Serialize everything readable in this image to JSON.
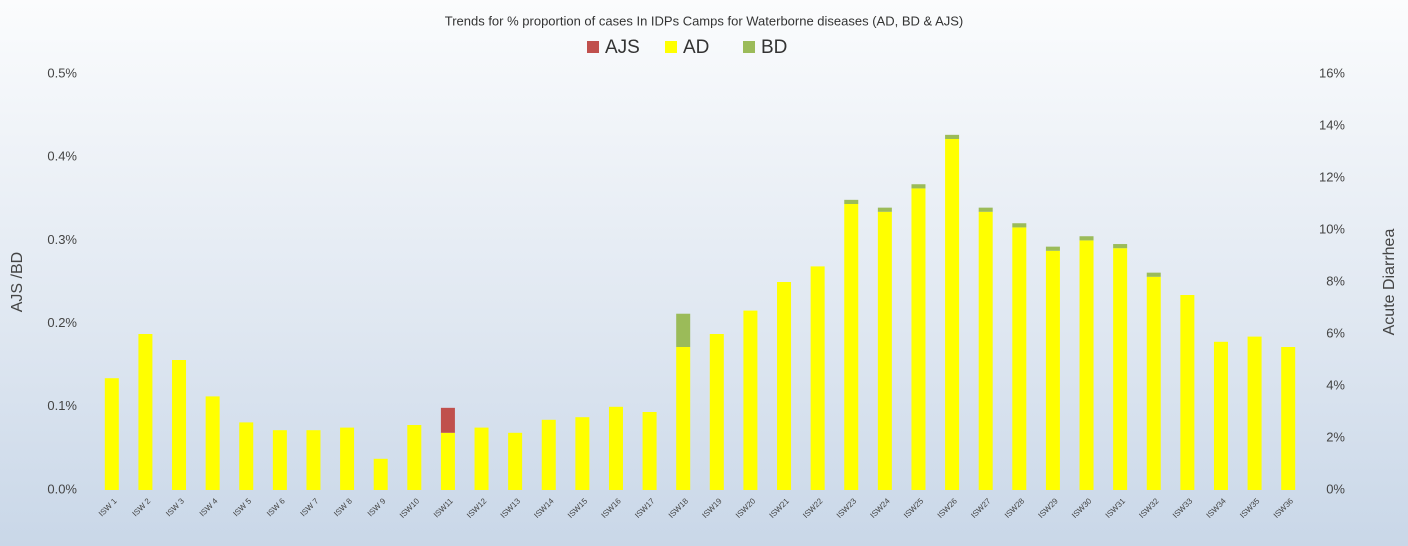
{
  "chart_data": {
    "type": "bar",
    "title": "Trends for % proportion of cases In IDPs Camps for Waterborne diseases (AD, BD & AJS)",
    "ylabel": "AJS /BD",
    "y2label": "Acute Diarrhea",
    "categories": [
      "ISW 1",
      "ISW 2",
      "ISW 3",
      "ISW 4",
      "ISW 5",
      "ISW 6",
      "ISW 7",
      "ISW 8",
      "ISW 9",
      "ISW10",
      "ISW11",
      "ISW12",
      "ISW13",
      "ISW14",
      "ISW15",
      "ISW16",
      "ISW17",
      "ISW18",
      "ISW19",
      "ISW20",
      "ISW21",
      "ISW22",
      "ISW23",
      "ISW24",
      "ISW25",
      "ISW26",
      "ISW27",
      "ISW28",
      "ISW29",
      "ISW30",
      "ISW31",
      "ISW32",
      "ISW33",
      "ISW34",
      "ISW35",
      "ISW36"
    ],
    "series": [
      {
        "name": "AJS",
        "color": "#c0504d",
        "values": [
          0,
          0,
          0,
          0,
          0,
          0,
          0,
          0,
          0,
          0,
          0.03,
          0,
          0,
          0,
          0,
          0,
          0,
          0,
          0,
          0,
          0,
          0,
          0,
          0,
          0,
          0,
          0,
          0,
          0,
          0,
          0,
          0,
          0,
          0,
          0,
          0
        ]
      },
      {
        "name": "AD",
        "color": "#ffff00",
        "axis": "y2",
        "values": [
          4.3,
          6.0,
          5.0,
          3.6,
          2.6,
          2.3,
          2.3,
          2.4,
          1.2,
          2.5,
          2.2,
          2.4,
          2.2,
          2.7,
          2.8,
          3.2,
          3.0,
          5.5,
          6.0,
          6.9,
          8.0,
          8.6,
          11.0,
          10.7,
          11.6,
          13.5,
          10.7,
          10.1,
          9.2,
          9.6,
          9.3,
          8.2,
          7.5,
          5.7,
          5.9,
          5.5
        ]
      },
      {
        "name": "BD",
        "color": "#9bbb59",
        "values": [
          0,
          0,
          0,
          0,
          0,
          0,
          0,
          0,
          0,
          0,
          0,
          0,
          0,
          0,
          0,
          0,
          0,
          0.04,
          0,
          0,
          0,
          0,
          0.005,
          0.005,
          0.005,
          0.005,
          0.005,
          0.005,
          0.005,
          0.005,
          0.005,
          0.005,
          0,
          0,
          0,
          0
        ]
      }
    ],
    "ylim": [
      0,
      0.5
    ],
    "yticks": [
      {
        "value": 0,
        "label": "0.0%"
      },
      {
        "value": 0.1,
        "label": "0.1%"
      },
      {
        "value": 0.2,
        "label": "0.2%"
      },
      {
        "value": 0.3,
        "label": "0.3%"
      },
      {
        "value": 0.4,
        "label": "0.4%"
      },
      {
        "value": 0.5,
        "label": "0.5%"
      }
    ],
    "y2lim": [
      0,
      16
    ],
    "y2ticks": [
      {
        "value": 0,
        "label": "0%"
      },
      {
        "value": 2,
        "label": "2%"
      },
      {
        "value": 4,
        "label": "4%"
      },
      {
        "value": 6,
        "label": "6%"
      },
      {
        "value": 8,
        "label": "8%"
      },
      {
        "value": 10,
        "label": "10%"
      },
      {
        "value": 12,
        "label": "12%"
      },
      {
        "value": 14,
        "label": "14%"
      },
      {
        "value": 16,
        "label": "16%"
      }
    ],
    "stacked": true,
    "legend": "top"
  }
}
